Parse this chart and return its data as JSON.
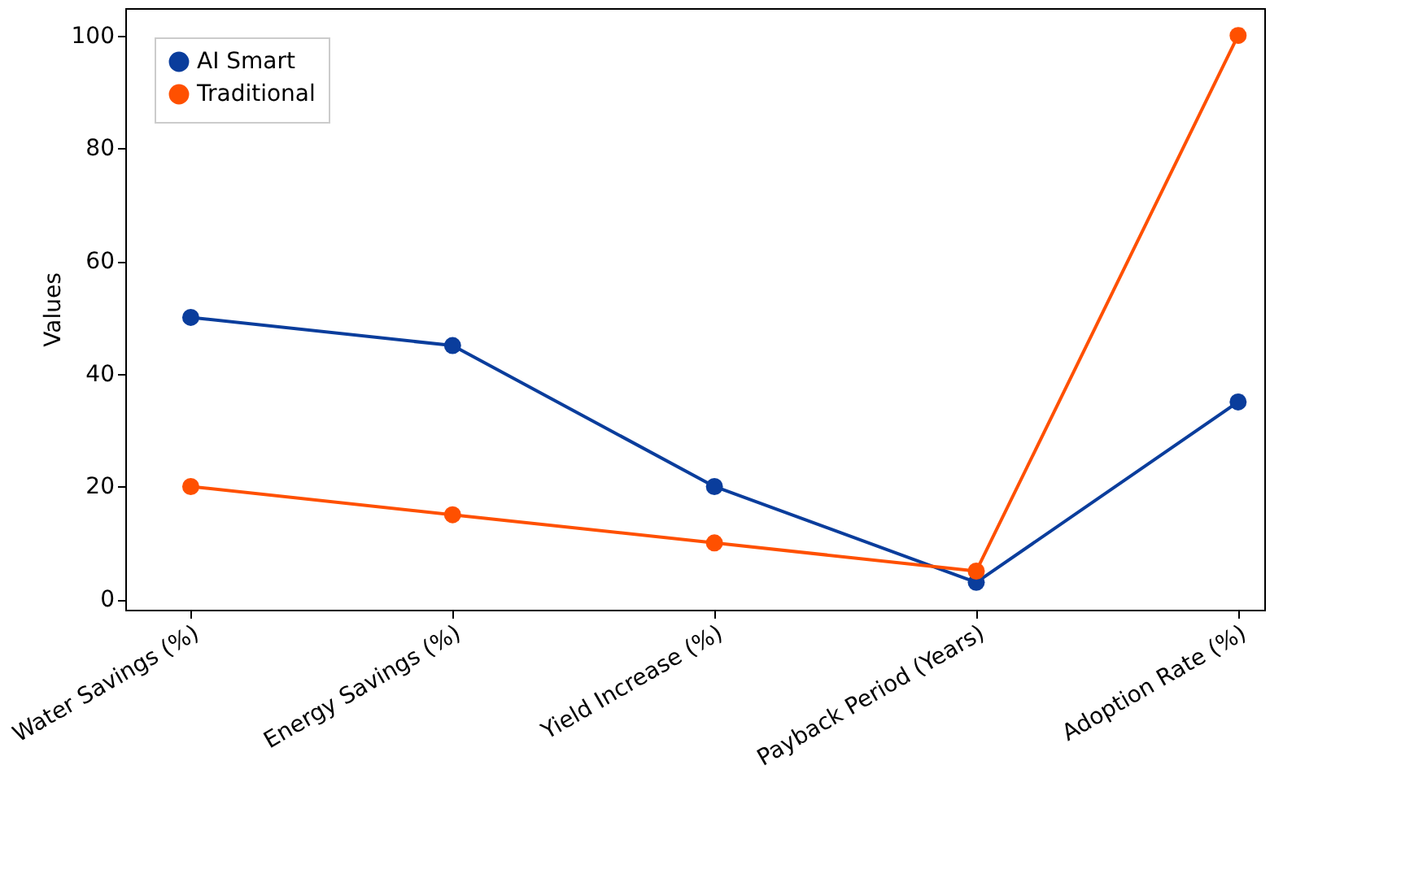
{
  "chart_data": {
    "type": "line",
    "ylabel": "Values",
    "categories": [
      "Water Savings (%)",
      "Energy Savings (%)",
      "Yield Increase (%)",
      "Payback Period (Years)",
      "Adoption Rate (%)"
    ],
    "series": [
      {
        "name": "AI Smart",
        "color": "#0a3d9c",
        "values": [
          50,
          45,
          20,
          3,
          35
        ]
      },
      {
        "name": "Traditional",
        "color": "#ff5000",
        "values": [
          20,
          15,
          10,
          5,
          100
        ]
      }
    ],
    "ylim": [
      -1.85,
      104.85
    ],
    "yticks": [
      0,
      20,
      40,
      60,
      80,
      100
    ],
    "grid": false,
    "legend": "top left",
    "marker": "circle",
    "line_style": "solid"
  }
}
